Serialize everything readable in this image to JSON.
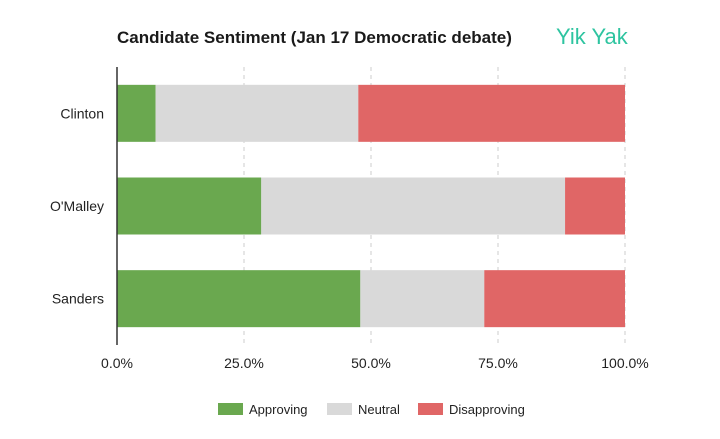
{
  "title": "Candidate Sentiment (Jan 17 Democratic debate)",
  "brand": "Yik Yak",
  "colors": {
    "Approving": "#6aa84f",
    "Neutral": "#d9d9d9",
    "Disapproving": "#e06666",
    "brand": "#2ec4a0",
    "grid": "#cccccc",
    "axis": "#333333"
  },
  "chart_data": {
    "type": "bar",
    "orientation": "horizontal",
    "stacked": true,
    "title": "Candidate Sentiment (Jan 17 Democratic debate)",
    "categories": [
      "Clinton",
      "O'Malley",
      "Sanders"
    ],
    "series": [
      {
        "name": "Approving",
        "values": [
          7.6,
          28.4,
          47.9
        ]
      },
      {
        "name": "Neutral",
        "values": [
          39.9,
          59.8,
          24.4
        ]
      },
      {
        "name": "Disapproving",
        "values": [
          52.5,
          11.8,
          27.7
        ]
      }
    ],
    "xlim": [
      0,
      100
    ],
    "xticks": [
      "0.0%",
      "25.0%",
      "50.0%",
      "75.0%",
      "100.0%"
    ],
    "xtick_values": [
      0,
      25,
      50,
      75,
      100
    ],
    "grid": "vertical dashed",
    "legend": "bottom"
  }
}
